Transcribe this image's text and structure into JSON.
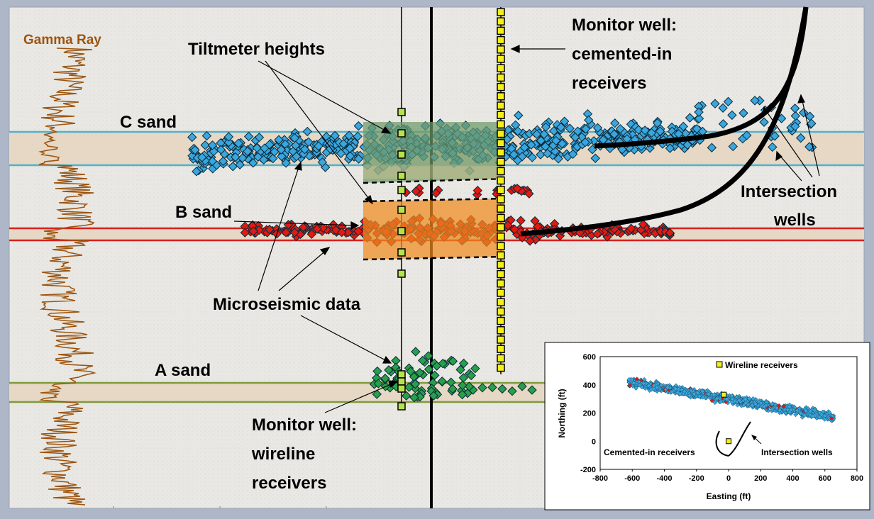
{
  "labels": {
    "gamma_ray": "Gamma Ray",
    "tiltmeter": "Tiltmeter heights",
    "monitor_cemented": [
      "Monitor well:",
      "cemented-in",
      "receivers"
    ],
    "c_sand": "C sand",
    "b_sand": "B sand",
    "a_sand": "A sand",
    "intersection": [
      "Intersection",
      "wells"
    ],
    "microseismic": "Microseismic data",
    "monitor_wireline": [
      "Monitor well:",
      "wireline",
      "receivers"
    ]
  },
  "colors": {
    "background": "#e9e8e4",
    "frame": "#aeb7c8",
    "gamma_ray": "#9c5410",
    "c_sand_events": "#3aa6dd",
    "b_sand_events": "#e01a12",
    "a_sand_events": "#28a04a",
    "sand_band": "#e6d8c4",
    "c_sand_line": "#4fb2cc",
    "b_sand_line": "#d91f1f",
    "a_sand_line": "#7f9a3c",
    "cemented_receiver": "#f4ee1a",
    "wireline_receiver": "#b6e34c",
    "tilt_c": "#6d9a6a",
    "tilt_b": "#f08a1e"
  },
  "inset": {
    "chart_data": {
      "type": "scatter",
      "xlabel": "Easting (ft)",
      "ylabel": "Northing (ft)",
      "xlim": [
        -800,
        800
      ],
      "ylim": [
        -200,
        600
      ],
      "x_ticks": [
        "-800",
        "-600",
        "-400",
        "-200",
        "0",
        "200",
        "400",
        "600",
        "800"
      ],
      "y_ticks": [
        "600",
        "400",
        "200",
        "0",
        "-200"
      ],
      "annotations": {
        "wireline": "Wireline receivers",
        "cemented": "Cemented-in receivers",
        "intersection": "Intersection wells"
      },
      "event_trend": {
        "x_from": -620,
        "x_to": 660,
        "northing_at_start": 420,
        "northing_at_end": 170
      },
      "wireline_receiver": {
        "x": -30,
        "y": 330
      },
      "cemented_receiver": {
        "x": 0,
        "y": 0
      }
    }
  }
}
